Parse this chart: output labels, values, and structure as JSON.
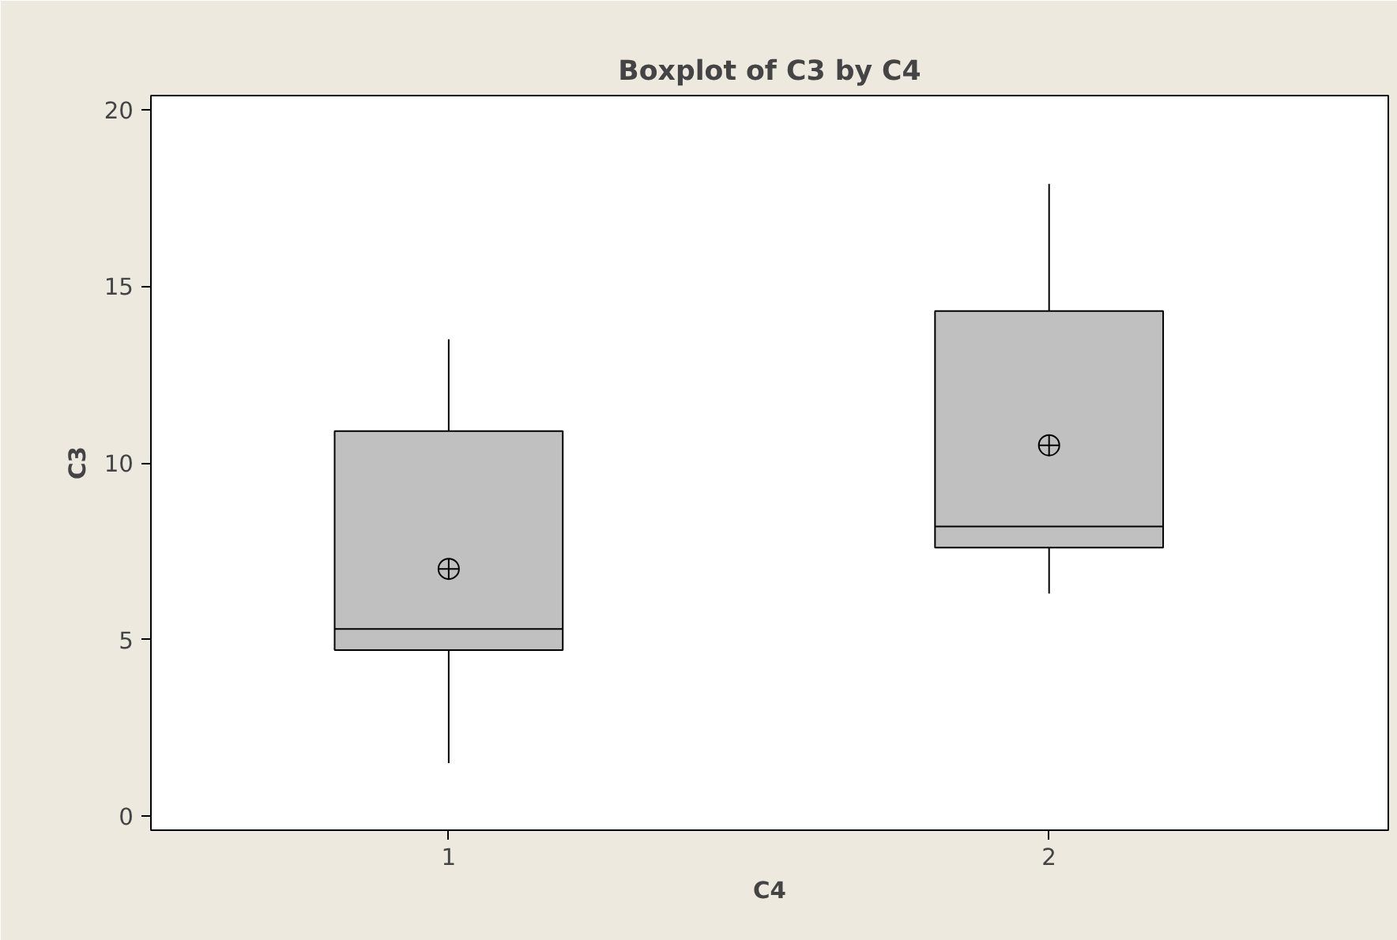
{
  "chart_data": {
    "type": "box",
    "title": "Boxplot of C3 by C4",
    "xlabel": "C4",
    "ylabel": "C3",
    "categories": [
      "1",
      "2"
    ],
    "boxes": [
      {
        "low": 1.5,
        "q1": 4.7,
        "median": 5.3,
        "q3": 10.9,
        "high": 13.5,
        "mean": 7.0
      },
      {
        "low": 6.3,
        "q1": 7.6,
        "median": 8.2,
        "q3": 14.3,
        "high": 17.9,
        "mean": 10.5
      }
    ],
    "color": "#c0c0c0",
    "ylim": [
      -0.4,
      20.4
    ],
    "yticks": [
      0,
      5,
      10,
      15,
      20
    ],
    "grid": false,
    "marker": "circle"
  }
}
